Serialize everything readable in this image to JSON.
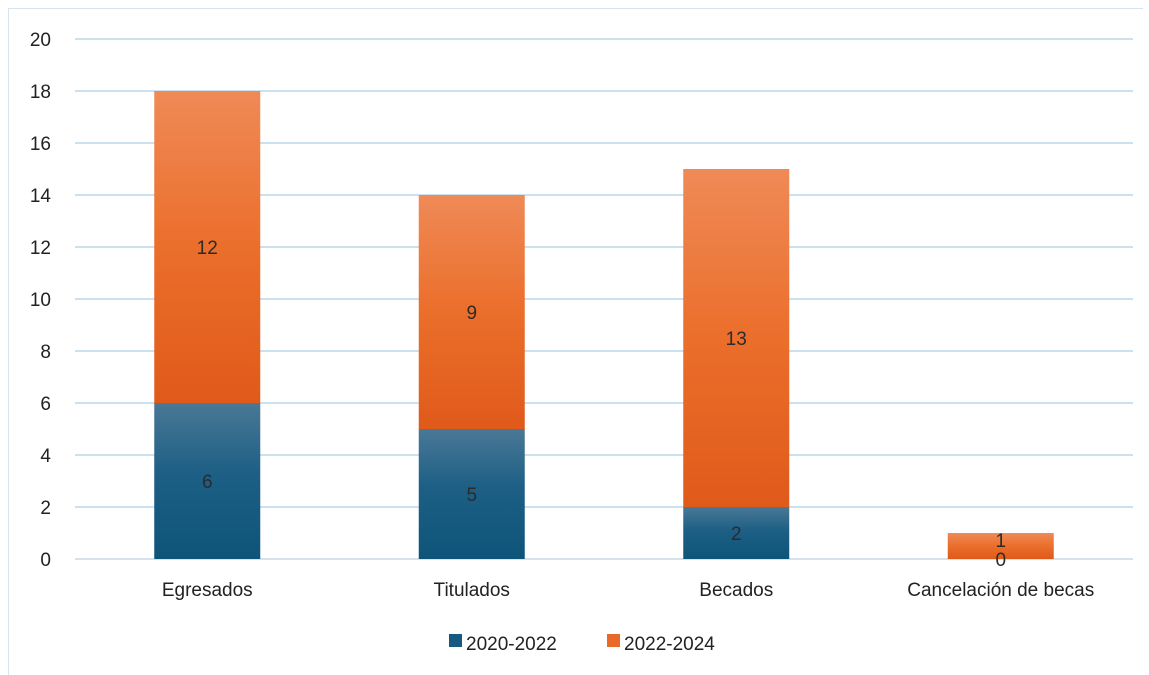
{
  "chart_data": {
    "type": "bar",
    "stacked": true,
    "categories": [
      "Egresados",
      "Titulados",
      "Becados",
      "Cancelación de becas"
    ],
    "series": [
      {
        "name": "2020-2022",
        "values": [
          6,
          5,
          2,
          0
        ],
        "color": "#165a80"
      },
      {
        "name": "2022-2024",
        "values": [
          12,
          9,
          13,
          1
        ],
        "color": "#e8692a"
      }
    ],
    "y_ticks": [
      "0",
      "2",
      "4",
      "6",
      "8",
      "10",
      "12",
      "14",
      "16",
      "18",
      "20"
    ],
    "ylim": [
      0,
      20
    ],
    "grid": true,
    "legend_position": "bottom",
    "title": "",
    "xlabel": "",
    "ylabel": ""
  }
}
